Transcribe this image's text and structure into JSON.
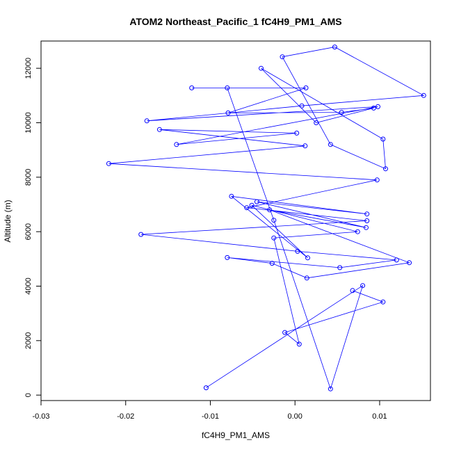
{
  "chart_data": {
    "type": "scatter",
    "title": "ATOM2 Northeast_Pacific_1 fC4H9_PM1_AMS",
    "xlabel": "fC4H9_PM1_AMS",
    "ylabel": "Altitude (m)",
    "xlim": [
      -0.03,
      0.016
    ],
    "ylim": [
      -200,
      13000
    ],
    "xticks": [
      -0.03,
      -0.02,
      -0.01,
      0.0,
      0.01
    ],
    "xtick_labels": [
      "-0.03",
      "-0.02",
      "-0.01",
      "0.00",
      "0.01"
    ],
    "yticks": [
      0,
      2000,
      4000,
      6000,
      8000,
      10000,
      12000
    ],
    "ytick_labels": [
      "0",
      "2000",
      "4000",
      "6000",
      "8000",
      "10000",
      "12000"
    ],
    "connected": true,
    "grid": false,
    "legend": "none",
    "series_color": "#0000ff",
    "x": [
      -0.0105,
      0.008,
      0.0042,
      -0.0025,
      -0.008,
      -0.0122,
      0.0013,
      -0.0079,
      0.0055,
      0.0093,
      0.0025,
      -0.004,
      0.0104,
      0.0107,
      0.0042,
      -0.0015,
      0.0047,
      0.0152,
      0.0008,
      -0.0175,
      0.0098,
      -0.014,
      0.0002,
      -0.016,
      0.0012,
      -0.022,
      0.0097,
      -0.0057,
      0.0085,
      -0.0182,
      0.0003,
      0.012,
      0.0053,
      -0.008,
      -0.0027,
      0.0014,
      0.0135,
      -0.003,
      0.0084,
      -0.0045,
      0.0085,
      -0.0075,
      0.0015,
      -0.0051,
      0.0074,
      -0.0025,
      0.0005,
      -0.0012,
      0.0104,
      0.0068
    ],
    "y": [
      270,
      4020,
      230,
      6420,
      11280,
      11280,
      11280,
      10360,
      10380,
      10540,
      10000,
      12000,
      9400,
      8310,
      9200,
      12420,
      12780,
      11000,
      10620,
      10070,
      10590,
      9200,
      9620,
      9750,
      9150,
      8500,
      7900,
      6880,
      6400,
      5900,
      5280,
      4960,
      4680,
      5050,
      4840,
      4300,
      4860,
      6800,
      6150,
      7100,
      6650,
      7300,
      5040,
      6970,
      6000,
      5770,
      1870,
      2300,
      3420,
      3840
    ]
  }
}
